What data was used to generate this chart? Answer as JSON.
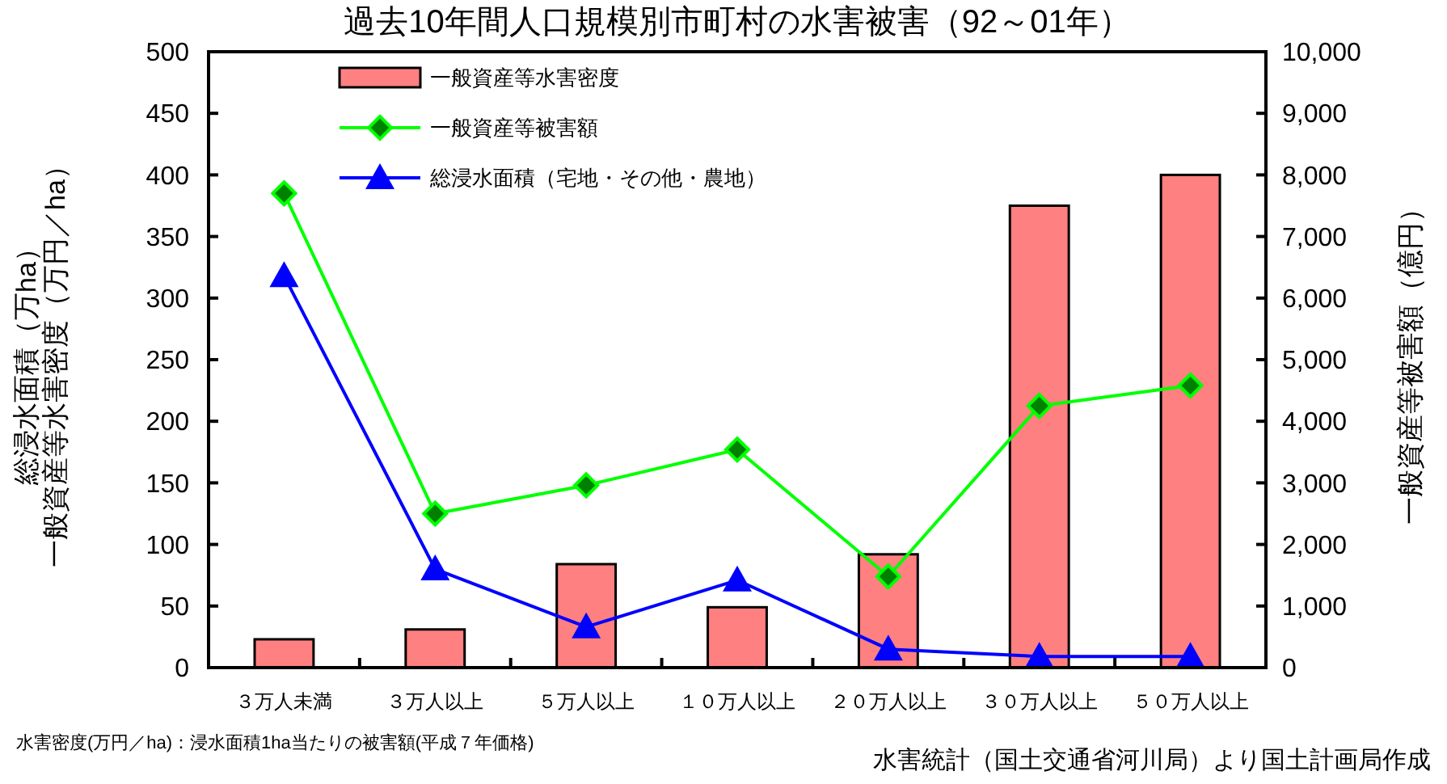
{
  "chart_data": {
    "type": "bar",
    "title": "過去10年間人口規模別市町村の水害被害（92～01年）",
    "categories": [
      "３万人未満",
      "３万人以上",
      "５万人以上",
      "１０万人以上",
      "２０万人以上",
      "３０万人以上",
      "５０万人以上"
    ],
    "series": [
      {
        "name": "一般資産等水害密度",
        "color": "#ff8080",
        "values": [
          23,
          31,
          84,
          49,
          92,
          375,
          400
        ]
      },
      {
        "name": "一般資産等被害額",
        "type": "line",
        "axis": "y2",
        "marker": "diamond",
        "color": "#00ff00",
        "values": [
          7700,
          2500,
          2960,
          3540,
          1480,
          4250,
          4580
        ]
      },
      {
        "name": "総浸水面積（宅地・その他・農地）",
        "type": "line",
        "marker": "triangle",
        "color": "#0000ff",
        "values": [
          318,
          80,
          33,
          71,
          15,
          9,
          9
        ]
      }
    ],
    "ylabel": [
      "総浸水面積（万ha）",
      "一般資産等水害密度（万円／ha）"
    ],
    "y2label": "一般資産等被害額（億円）",
    "ylim": [
      0,
      500
    ],
    "yticks": [
      0,
      50,
      100,
      150,
      200,
      250,
      300,
      350,
      400,
      450,
      500
    ],
    "y2lim": [
      0,
      10000
    ],
    "y2ticks": [
      {
        "value": 0,
        "label": "0"
      },
      {
        "value": 1000,
        "label": "1,000"
      },
      {
        "value": 2000,
        "label": "2,000"
      },
      {
        "value": 3000,
        "label": "3,000"
      },
      {
        "value": 4000,
        "label": "4,000"
      },
      {
        "value": 5000,
        "label": "5,000"
      },
      {
        "value": 6000,
        "label": "6,000"
      },
      {
        "value": 7000,
        "label": "7,000"
      },
      {
        "value": 8000,
        "label": "8,000"
      },
      {
        "value": 9000,
        "label": "9,000"
      },
      {
        "value": 10000,
        "label": "10,000"
      }
    ],
    "legend": "top",
    "grid": false,
    "annotations": [
      "水害密度(万円／ha)：浸水面積1ha当たりの被害額(平成７年価格)",
      "水害統計（国土交通省河川局）より国土計画局作成"
    ]
  }
}
